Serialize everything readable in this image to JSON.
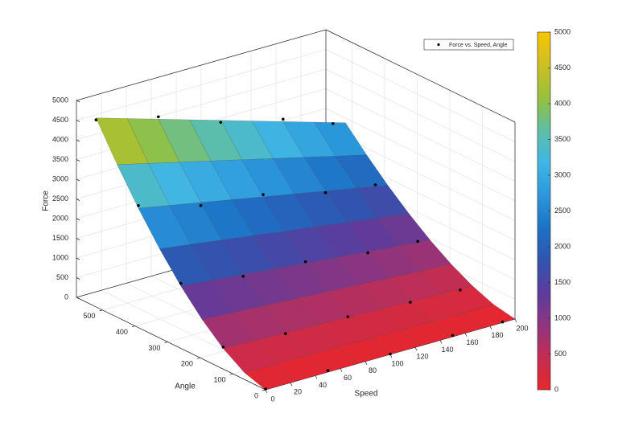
{
  "chart_data": {
    "type": "surface3d",
    "xlabel": "Speed",
    "ylabel": "Angle",
    "zlabel": "Force",
    "xlim": [
      0,
      200
    ],
    "ylim": [
      0,
      580
    ],
    "zlim": [
      0,
      5000
    ],
    "xticks": [
      0,
      20,
      40,
      60,
      80,
      100,
      120,
      140,
      160,
      180,
      200
    ],
    "yticks": [
      0,
      100,
      200,
      300,
      400,
      500
    ],
    "zticks": [
      0,
      500,
      1000,
      1500,
      2000,
      2500,
      3000,
      3500,
      4000,
      4500,
      5000
    ],
    "grid": true,
    "legend": "top-right",
    "surface": {
      "x": [
        0,
        25,
        50,
        75,
        100,
        125,
        150,
        175,
        200
      ],
      "y": [
        0,
        65,
        130,
        195,
        260,
        325,
        390,
        455,
        520
      ],
      "z": [
        [
          0,
          0,
          0,
          0,
          0,
          0,
          0,
          0,
          0
        ],
        [
          172,
          163,
          155,
          146,
          138,
          129,
          120,
          112,
          103
        ],
        [
          522,
          496,
          470,
          444,
          418,
          392,
          365,
          339,
          313
        ],
        [
          999,
          949,
          899,
          849,
          799,
          749,
          699,
          649,
          599
        ],
        [
          1584,
          1505,
          1426,
          1346,
          1267,
          1188,
          1109,
          1030,
          950
        ],
        [
          2263,
          2150,
          2037,
          1924,
          1810,
          1697,
          1584,
          1471,
          1358
        ],
        [
          3029,
          2878,
          2726,
          2575,
          2423,
          2272,
          2120,
          1969,
          1817
        ],
        [
          3876,
          3682,
          3488,
          3295,
          3101,
          2907,
          2713,
          2519,
          2326
        ],
        [
          4800,
          4560,
          4320,
          4080,
          3840,
          3600,
          3360,
          3120,
          2880
        ]
      ]
    },
    "scatter": {
      "name": "Force vs. Speed, Angle",
      "color": "#000000",
      "x": [
        0,
        50,
        100,
        150,
        190,
        0,
        50,
        100,
        150,
        190,
        0,
        50,
        100,
        150,
        190,
        0,
        50,
        100,
        150,
        190,
        0,
        50,
        100,
        150,
        190
      ],
      "y": [
        0,
        0,
        0,
        0,
        0,
        130,
        130,
        130,
        130,
        130,
        260,
        260,
        260,
        260,
        260,
        390,
        390,
        390,
        390,
        390,
        520,
        520,
        520,
        520,
        520
      ],
      "z": [
        20,
        40,
        10,
        30,
        15,
        560,
        450,
        430,
        350,
        300,
        1650,
        1380,
        1300,
        1080,
        1010,
        3100,
        2650,
        2480,
        2080,
        1920,
        4750,
        4380,
        3790,
        3420,
        2950
      ]
    },
    "colorbar": {
      "clim": [
        0,
        5000
      ],
      "ticks": [
        0,
        500,
        1000,
        1500,
        2000,
        2500,
        3000,
        3500,
        4000,
        4500,
        5000
      ],
      "colormap": [
        "#e8262d",
        "#c42d52",
        "#8e3580",
        "#5b3c9e",
        "#2f55b0",
        "#1d72c6",
        "#2c98dc",
        "#41b6e4",
        "#5fbfa4",
        "#98c03a",
        "#cdbf26",
        "#f7c600"
      ]
    }
  }
}
